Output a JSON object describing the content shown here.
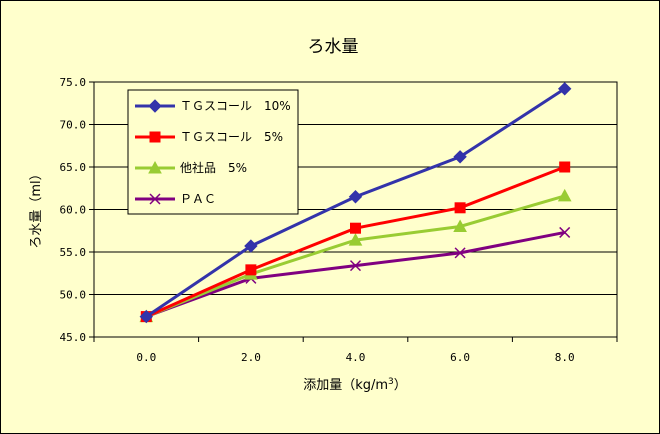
{
  "chart_data": {
    "type": "line",
    "title": "ろ水量",
    "xlabel": "添加量（kg/m",
    "xlabel_sup": "3",
    "xlabel_close": "）",
    "ylabel": "ろ水量（ml）",
    "x": [
      0,
      2,
      4,
      6,
      8
    ],
    "x_tick_labels": [
      "0.0",
      "2.0",
      "4.0",
      "6.0",
      "8.0"
    ],
    "y_ticks": [
      45,
      50,
      55,
      60,
      65,
      70,
      75
    ],
    "y_tick_labels": [
      "45.0",
      "50.0",
      "55.0",
      "60.0",
      "65.0",
      "70.0",
      "75.0"
    ],
    "ylim": [
      45,
      75
    ],
    "grid": "horizontal",
    "legend_position": "top-left",
    "series": [
      {
        "name": "ＴＧスコール　10%",
        "color": "#3333aa",
        "marker": "diamond",
        "values": [
          47.4,
          55.7,
          61.5,
          66.2,
          74.2
        ]
      },
      {
        "name": "ＴＧスコール　5%",
        "color": "#ff0000",
        "marker": "square",
        "values": [
          47.4,
          52.9,
          57.8,
          60.2,
          65.0
        ]
      },
      {
        "name": "他社品　5%",
        "color": "#99cc33",
        "marker": "triangle",
        "values": [
          47.4,
          52.4,
          56.4,
          58.0,
          61.6
        ]
      },
      {
        "name": "ＰＡＣ",
        "color": "#800080",
        "marker": "x",
        "values": [
          47.4,
          51.9,
          53.4,
          54.9,
          57.3
        ]
      }
    ]
  }
}
